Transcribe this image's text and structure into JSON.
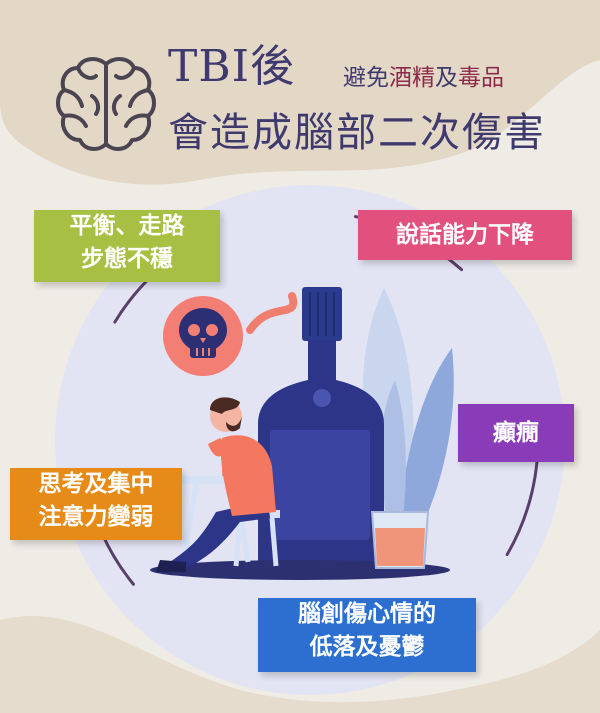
{
  "title": {
    "main": "TBI後",
    "sub_pre": "避免",
    "sub_hl1": "酒精",
    "sub_mid": "及",
    "sub_hl2": "毒品",
    "line2": "會造成腦部二次傷害"
  },
  "effects": {
    "balance": [
      "平衡、走路",
      "步態不穩"
    ],
    "speech": "說話能力下降",
    "epilepsy": "癲癇",
    "cognition": [
      "思考及集中",
      "注意力變弱"
    ],
    "mood": [
      "腦創傷心情的",
      "低落及憂鬱"
    ]
  },
  "colors": {
    "title": "#3f3a6e",
    "highlight": "#8e2a49",
    "balance": "#a7c043",
    "speech": "#e2507d",
    "epilepsy": "#8a3bb8",
    "cognition": "#e68a18",
    "mood": "#2d6fd0"
  }
}
